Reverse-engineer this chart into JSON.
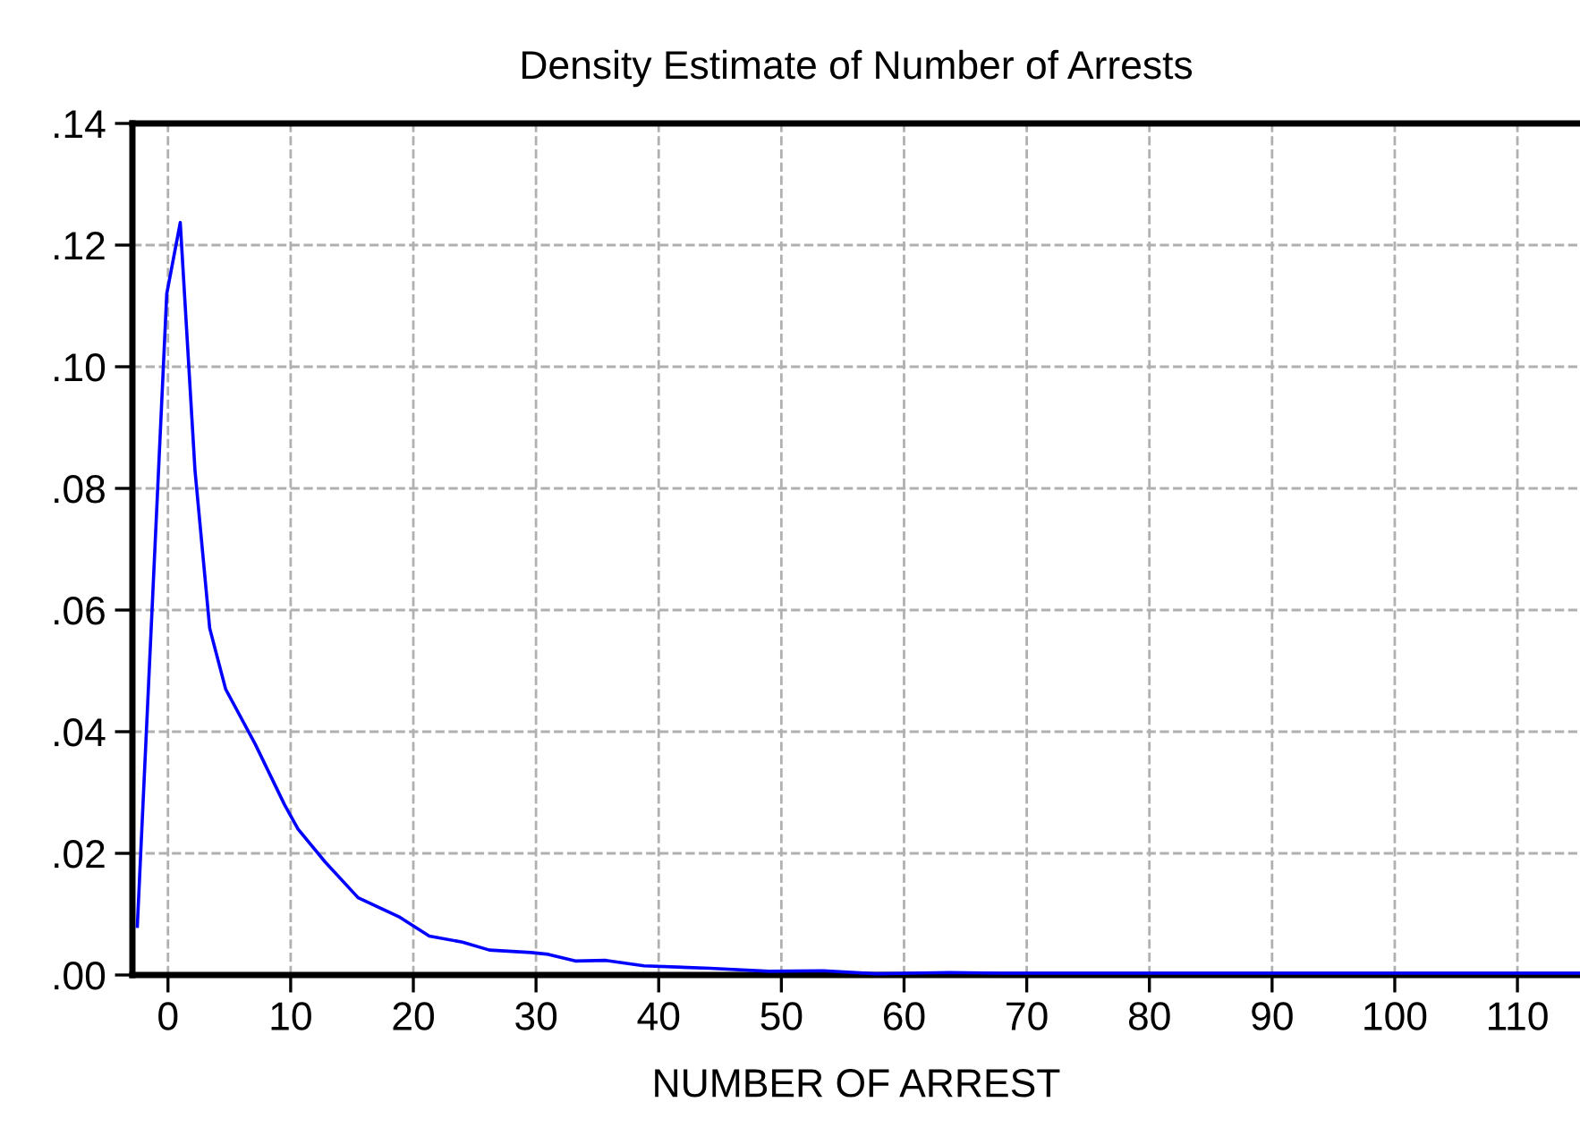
{
  "chart_data": {
    "type": "line",
    "title": "Density Estimate of Number of Arrests",
    "xlabel": "NUMBER OF ARREST",
    "series": [
      {
        "color": "#0000ff",
        "x": [
          -2.5,
          -0.1,
          1.0,
          2.2,
          3.4,
          4.7,
          7.1,
          9.5,
          10.6,
          12.8,
          15.5,
          18.9,
          21.3,
          24,
          26.2,
          29.6,
          31,
          33.2,
          35.7,
          38.8,
          44.2,
          49,
          53.4,
          57.7,
          63.7,
          68,
          75,
          85,
          95,
          105,
          115
        ],
        "values": [
          0.008,
          0.112,
          0.1237,
          0.083,
          0.057,
          0.047,
          0.038,
          0.028,
          0.024,
          0.0186,
          0.0127,
          0.0095,
          0.0064,
          0.0054,
          0.0041,
          0.0037,
          0.0034,
          0.0023,
          0.0024,
          0.0015,
          0.0011,
          0.0006,
          0.0007,
          0.0002,
          0.0004,
          0.0003,
          0.0003,
          0.0003,
          0.0003,
          0.0003,
          0.0003
        ]
      }
    ],
    "xlim": [
      -2.9,
      115.1
    ],
    "ylim": [
      0,
      0.14
    ],
    "xticks": [
      0,
      10,
      20,
      30,
      40,
      50,
      60,
      70,
      80,
      90,
      100,
      110
    ],
    "yticks": [
      {
        "value": 0,
        "label": ".00"
      },
      {
        "value": 0.02,
        "label": ".02"
      },
      {
        "value": 0.04,
        "label": ".04"
      },
      {
        "value": 0.06,
        "label": ".06"
      },
      {
        "value": 0.08,
        "label": ".08"
      },
      {
        "value": 0.1,
        "label": ".10"
      },
      {
        "value": 0.12,
        "label": ".12"
      },
      {
        "value": 0.14,
        "label": ".14"
      }
    ],
    "grid": true,
    "legend": false
  }
}
